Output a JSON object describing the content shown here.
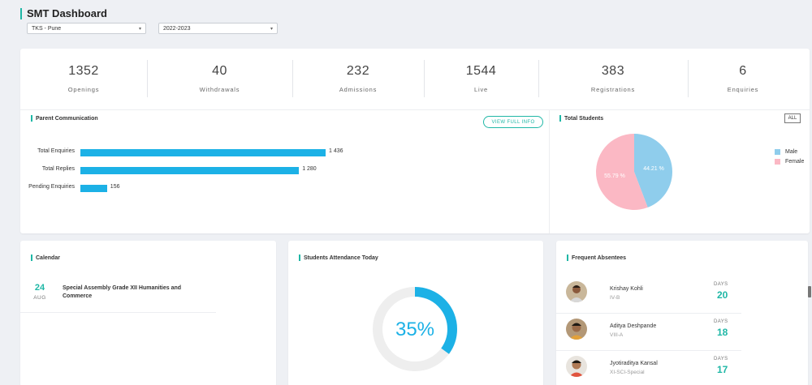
{
  "header": {
    "title": "SMT Dashboard",
    "school_select": "TKS - Pune",
    "year_select": "2022-2023"
  },
  "stats": [
    {
      "value": "1352",
      "label": "Openings"
    },
    {
      "value": "40",
      "label": "Withdrawals"
    },
    {
      "value": "232",
      "label": "Admissions"
    },
    {
      "value": "1544",
      "label": "Live"
    },
    {
      "value": "383",
      "label": "Registrations"
    },
    {
      "value": "6",
      "label": "Enquiries"
    }
  ],
  "parent_communication": {
    "title": "Parent Communication",
    "button_label": "VIEW FULL INFO",
    "chart_data": {
      "type": "bar",
      "orientation": "horizontal",
      "categories": [
        "Total Enquiries",
        "Total Replies",
        "Pending Enquiries"
      ],
      "values": [
        1436,
        1280,
        156
      ],
      "value_labels": [
        "1 436",
        "1 280",
        "156"
      ]
    }
  },
  "total_students": {
    "title": "Total Students",
    "filter_label": "ALL",
    "chart_data": {
      "type": "pie",
      "categories": [
        "Male",
        "Female"
      ],
      "values": [
        44.21,
        55.79
      ],
      "value_labels": [
        "44.21 %",
        "55.79 %"
      ],
      "colors": [
        "#8fcdec",
        "#fbb8c4"
      ],
      "legend_position": "right"
    }
  },
  "calendar": {
    "title": "Calendar",
    "events": [
      {
        "day": "24",
        "month": "AUG",
        "text": "Special Assembly Grade XII Humanities and Commerce"
      }
    ]
  },
  "attendance": {
    "title": "Students Attendance Today",
    "percent_label": "35%",
    "fraction": 0.35,
    "accent": "#1cb1e6"
  },
  "absentees": {
    "title": "Frequent Absentees",
    "days_label": "DAYS",
    "items": [
      {
        "name": "Krishay Kohli",
        "class": "IV-B",
        "days": "20"
      },
      {
        "name": "Aditya Deshpande",
        "class": "VIII-A",
        "days": "18"
      },
      {
        "name": "Jyotiraditya Kansal",
        "class": "XI-SCI-Special",
        "days": "17"
      }
    ]
  },
  "colors": {
    "accent": "#1fb7a6",
    "bar": "#1cb1e6",
    "male": "#8fcdec",
    "female": "#fbb8c4"
  }
}
